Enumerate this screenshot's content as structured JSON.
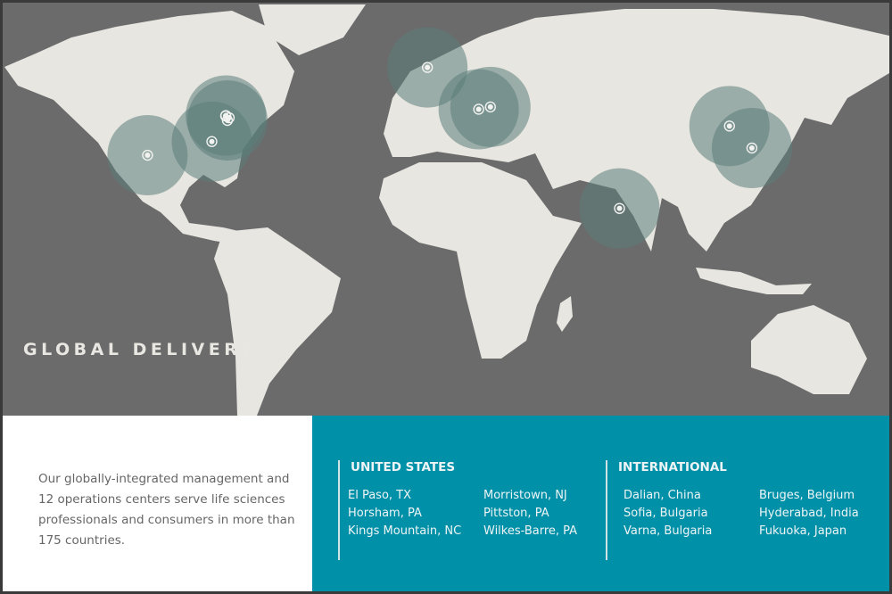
{
  "map": {
    "title": "GLOBAL DELIVERY",
    "colors": {
      "ocean": "#6b6b6b",
      "land": "#e8e6e1",
      "circle": "#5b7d7a",
      "accent": "#0091a9"
    },
    "locations": [
      {
        "name": "El Paso, TX",
        "lon": -106.5,
        "lat": 31.8
      },
      {
        "name": "Kings Mountain, NC",
        "lon": -81.3,
        "lat": 35.2
      },
      {
        "name": "Horsham, PA",
        "lon": -75.2,
        "lat": 40.2
      },
      {
        "name": "Morristown, NJ",
        "lon": -74.5,
        "lat": 40.8
      },
      {
        "name": "Pittston, PA",
        "lon": -75.8,
        "lat": 41.3
      },
      {
        "name": "Wilkes-Barre, PA",
        "lon": -75.9,
        "lat": 41.2
      },
      {
        "name": "Bruges, Belgium",
        "lon": 3.2,
        "lat": 51.2
      },
      {
        "name": "Sofia, Bulgaria",
        "lon": 23.3,
        "lat": 42.7
      },
      {
        "name": "Varna, Bulgaria",
        "lon": 27.9,
        "lat": 43.2
      },
      {
        "name": "Hyderabad, India",
        "lon": 78.5,
        "lat": 17.4
      },
      {
        "name": "Dalian, China",
        "lon": 121.6,
        "lat": 38.9
      },
      {
        "name": "Fukuoka, Japan",
        "lon": 130.4,
        "lat": 33.6
      }
    ]
  },
  "intro": "Our globally-integrated management and 12 operations centers serve life sciences professionals and consumers in more than 175 countries.",
  "us": {
    "heading": "UNITED STATES",
    "items": [
      "El Paso, TX",
      "Morristown, NJ",
      "Horsham, PA",
      "Pittston, PA",
      "Kings Mountain, NC",
      "Wilkes-Barre, PA"
    ]
  },
  "international": {
    "heading": "INTERNATIONAL",
    "items": [
      "Dalian, China",
      "Bruges, Belgium",
      "Sofia, Bulgaria",
      "Hyderabad, India",
      "Varna, Bulgaria",
      "Fukuoka, Japan"
    ]
  }
}
